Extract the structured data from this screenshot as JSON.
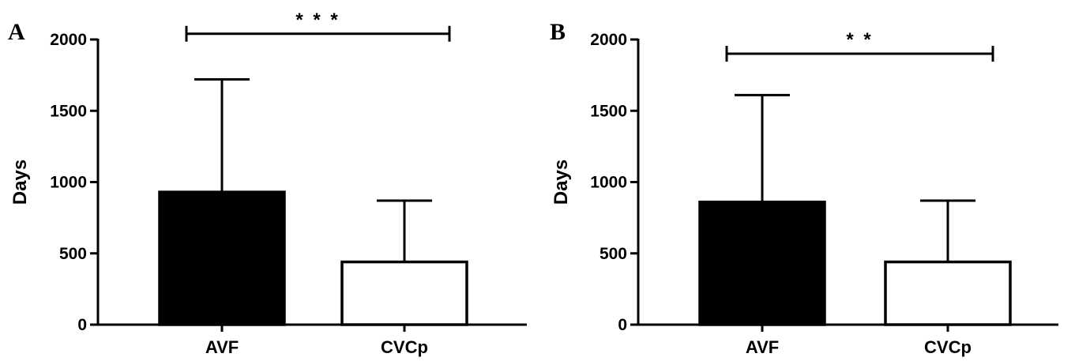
{
  "chart_data": [
    {
      "type": "bar",
      "panel": "A",
      "ylabel": "Days",
      "ylim": [
        0,
        2000
      ],
      "yticks": [
        "0",
        "500",
        "1000",
        "1500",
        "2000"
      ],
      "categories": [
        "AVF",
        "CVCp"
      ],
      "values": [
        930,
        440
      ],
      "error_upper": [
        1720,
        870
      ],
      "bar_colors": [
        "#000000",
        "#ffffff"
      ],
      "significance": {
        "label": "* * *",
        "y": 2040,
        "from": "AVF",
        "to": "CVCp"
      }
    },
    {
      "type": "bar",
      "panel": "B",
      "ylabel": "Days",
      "ylim": [
        0,
        2000
      ],
      "yticks": [
        "0",
        "500",
        "1000",
        "1500",
        "2000"
      ],
      "categories": [
        "AVF",
        "CVCp"
      ],
      "values": [
        860,
        440
      ],
      "error_upper": [
        1610,
        870
      ],
      "bar_colors": [
        "#000000",
        "#ffffff"
      ],
      "significance": {
        "label": "* *",
        "y": 1900,
        "from": "AVF",
        "to": "CVCp"
      }
    }
  ]
}
